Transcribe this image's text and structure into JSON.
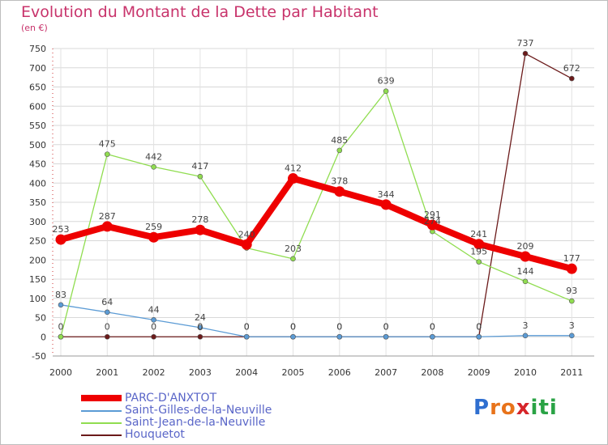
{
  "chart_data": {
    "type": "line",
    "title": "Evolution du Montant de la Dette par Habitant",
    "subtitle": "(en €)",
    "x": [
      "2000",
      "2001",
      "2002",
      "2003",
      "2004",
      "2005",
      "2006",
      "2007",
      "2008",
      "2009",
      "2010",
      "2011"
    ],
    "ylim": [
      -50,
      750
    ],
    "yticks": [
      -50,
      0,
      50,
      100,
      150,
      200,
      250,
      300,
      350,
      400,
      450,
      500,
      550,
      600,
      650,
      700,
      750
    ],
    "grid": true,
    "legend_position": "bottom-left",
    "series": [
      {
        "name": "Houquetot",
        "color": "#6b1a1a",
        "values": [
          0,
          0,
          0,
          0,
          0,
          0,
          0,
          0,
          0,
          0,
          737,
          672
        ],
        "labels": [
          "0",
          "0",
          "0",
          "0",
          "0",
          "0",
          "0",
          "0",
          "0",
          "0",
          "737",
          "672"
        ]
      },
      {
        "name": "Saint-Gilles-de-la-Neuville",
        "color": "#5b9bd5",
        "values": [
          83,
          64,
          44,
          24,
          0,
          0,
          0,
          0,
          0,
          0,
          3,
          3
        ],
        "labels": [
          "83",
          "64",
          "44",
          "24",
          "0",
          "0",
          "0",
          "0",
          "0",
          "0",
          "3",
          "3"
        ]
      },
      {
        "name": "Saint-Jean-de-la-Neuville",
        "color": "#90dd50",
        "values": [
          0,
          475,
          442,
          417,
          231,
          203,
          485,
          639,
          274,
          195,
          144,
          93
        ],
        "labels": [
          "",
          "475",
          "442",
          "417",
          "",
          "203",
          "485",
          "639",
          "274",
          "195",
          "144",
          "93"
        ]
      },
      {
        "name": "PARC-D'ANXTOT",
        "color": "#ee0000",
        "values": [
          253,
          287,
          259,
          278,
          240,
          412,
          378,
          344,
          291,
          241,
          209,
          177
        ],
        "labels": [
          "253",
          "287",
          "259",
          "278",
          "240",
          "412",
          "378",
          "344",
          "291",
          "241",
          "209",
          "177"
        ]
      }
    ]
  },
  "legend": [
    {
      "name": "PARC-D'ANXTOT",
      "color": "#ee0000"
    },
    {
      "name": "Saint-Gilles-de-la-Neuville",
      "color": "#5b9bd5"
    },
    {
      "name": "Saint-Jean-de-la-Neuville",
      "color": "#90dd50"
    },
    {
      "name": "Houquetot",
      "color": "#6b1a1a"
    }
  ],
  "logo": {
    "letters": [
      "P",
      "r",
      "o",
      "x",
      "i",
      "t",
      "i"
    ],
    "colors": [
      "#2f6fd0",
      "#e8731a",
      "#e8731a",
      "#d6252a",
      "#2aa345",
      "#2aa345",
      "#2aa345"
    ]
  }
}
